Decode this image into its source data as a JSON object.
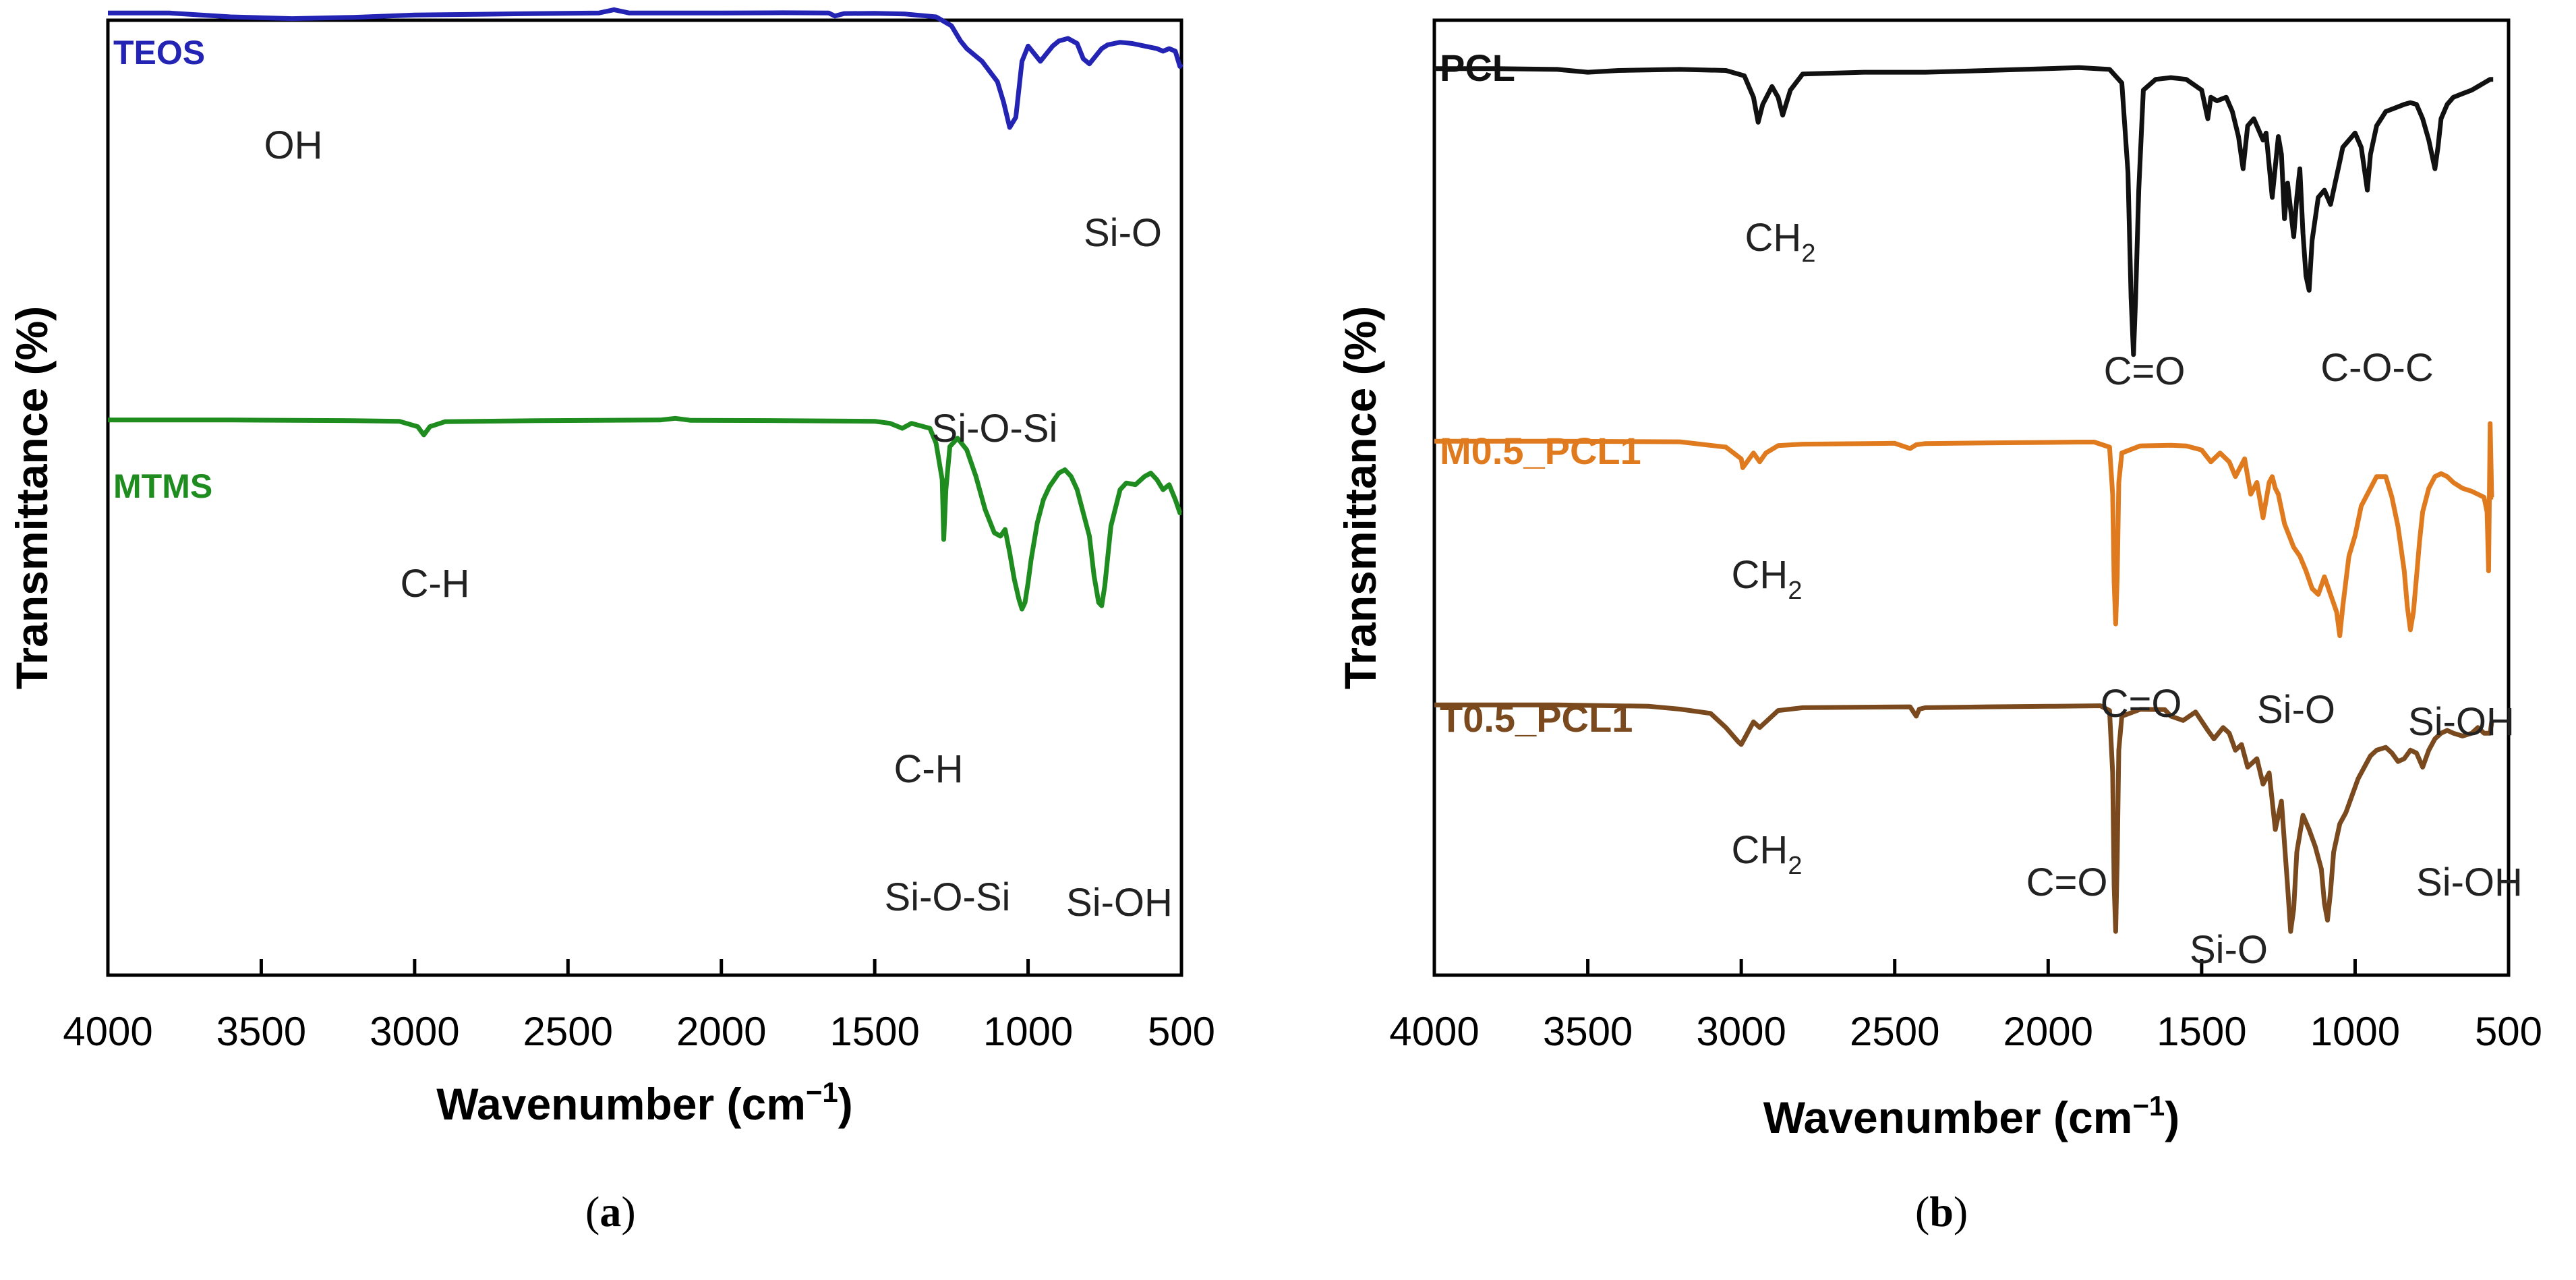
{
  "chart_data": [
    {
      "panel": "(a)",
      "type": "line",
      "xlabel": "Wavenumber (cm",
      "xlabel_sup": "−1",
      "ylabel": "Transmittance (%)",
      "xlim": [
        4000,
        500
      ],
      "x_reversed": true,
      "xticks": [
        "4000",
        "3500",
        "3000",
        "2500",
        "2000",
        "1500",
        "1000",
        "500"
      ],
      "xtick_values": [
        4000,
        3500,
        3000,
        2500,
        2000,
        1500,
        1000,
        500
      ],
      "y_units": "arbitrary (offset spectra)",
      "ylim": [
        0,
        100
      ],
      "grid": false,
      "series": [
        {
          "name": "TEOS",
          "color": "#2323b4",
          "x": [
            4000,
            3800,
            3600,
            3400,
            3200,
            3000,
            2800,
            2600,
            2400,
            2350,
            2300,
            2200,
            2000,
            1800,
            1650,
            1630,
            1600,
            1500,
            1400,
            1300,
            1250,
            1220,
            1200,
            1150,
            1100,
            1080,
            1060,
            1040,
            1020,
            1000,
            980,
            960,
            940,
            920,
            900,
            870,
            840,
            820,
            800,
            780,
            760,
            740,
            700,
            660,
            620,
            580,
            560,
            540,
            520,
            505,
            500
          ],
          "y": [
            97,
            97,
            95.5,
            94.8,
            95.3,
            96.2,
            96.5,
            96.8,
            97,
            98.3,
            97,
            97,
            97,
            97.1,
            97,
            95.8,
            96.8,
            96.9,
            96.6,
            95.5,
            92,
            86,
            83,
            78,
            70,
            62,
            52,
            56,
            78,
            84,
            81,
            78,
            81,
            84,
            86,
            87,
            85,
            79,
            77,
            80,
            83,
            84.5,
            85.5,
            85,
            84,
            83,
            82,
            83,
            82,
            76,
            77
          ]
        },
        {
          "name": "MTMS",
          "color": "#1e8c1e",
          "x": [
            4000,
            3600,
            3200,
            3050,
            2990,
            2970,
            2950,
            2900,
            2600,
            2200,
            2150,
            2100,
            1800,
            1500,
            1450,
            1410,
            1380,
            1320,
            1300,
            1280,
            1275,
            1268,
            1255,
            1230,
            1200,
            1170,
            1140,
            1110,
            1090,
            1075,
            1060,
            1045,
            1030,
            1020,
            1010,
            1000,
            990,
            970,
            950,
            930,
            900,
            880,
            860,
            840,
            800,
            785,
            770,
            760,
            750,
            730,
            700,
            680,
            650,
            620,
            600,
            580,
            560,
            540,
            520,
            505,
            500
          ],
          "y": [
            97,
            97,
            96.8,
            96.6,
            95,
            92.5,
            95,
            96.5,
            96.8,
            97,
            97.5,
            96.9,
            96.8,
            96.6,
            96,
            94.5,
            96,
            94.5,
            90,
            79,
            61,
            76,
            89,
            91.5,
            88,
            80,
            70,
            63,
            62,
            64,
            57,
            49,
            43,
            40,
            42,
            48,
            55,
            66,
            73,
            77,
            81,
            82,
            80,
            76,
            62,
            50,
            42,
            41,
            47,
            65,
            76,
            78,
            77.5,
            80,
            81,
            79,
            76,
            77.5,
            73,
            69,
            69
          ]
        }
      ],
      "annotations": [
        {
          "text": "OH",
          "color": "#222222"
        },
        {
          "text": "Si-O",
          "color": "#222222"
        },
        {
          "text": "Si-O-Si",
          "color": "#222222"
        },
        {
          "text": "C-H",
          "color": "#222222"
        },
        {
          "text": "C-H",
          "color": "#222222"
        },
        {
          "text": "Si-O-Si",
          "color": "#222222"
        },
        {
          "text": "Si-OH",
          "color": "#222222"
        }
      ]
    },
    {
      "panel": "(b)",
      "type": "line",
      "xlabel": "Wavenumber (cm",
      "xlabel_sup": "−1",
      "ylabel": "Transmittance (%)",
      "xlim": [
        4000,
        500
      ],
      "x_reversed": true,
      "xticks": [
        "4000",
        "3500",
        "3000",
        "2500",
        "2000",
        "1500",
        "1000",
        "500"
      ],
      "xtick_values": [
        4000,
        3500,
        3000,
        2500,
        2000,
        1500,
        1000,
        500
      ],
      "y_units": "arbitrary (offset spectra)",
      "ylim": [
        0,
        100
      ],
      "grid": false,
      "series": [
        {
          "name": "PCL",
          "color": "#111111",
          "x": [
            4000,
            3800,
            3600,
            3500,
            3400,
            3200,
            3050,
            2990,
            2960,
            2945,
            2930,
            2900,
            2880,
            2865,
            2840,
            2800,
            2600,
            2400,
            2200,
            2000,
            1900,
            1800,
            1760,
            1740,
            1730,
            1722,
            1715,
            1705,
            1690,
            1650,
            1600,
            1550,
            1500,
            1480,
            1470,
            1450,
            1420,
            1400,
            1380,
            1365,
            1350,
            1330,
            1300,
            1290,
            1270,
            1250,
            1240,
            1230,
            1220,
            1200,
            1190,
            1180,
            1170,
            1160,
            1150,
            1140,
            1120,
            1100,
            1080,
            1065,
            1050,
            1040,
            1020,
            1000,
            980,
            970,
            960,
            950,
            930,
            900,
            870,
            840,
            820,
            800,
            780,
            760,
            740,
            730,
            720,
            700,
            680,
            650,
            620,
            600,
            580,
            560,
            550
          ],
          "y": [
            94,
            94,
            93.8,
            93,
            93.5,
            93.8,
            93.5,
            92,
            86,
            79,
            84,
            89,
            86,
            81,
            88,
            92.5,
            93,
            93,
            93.5,
            94,
            94.3,
            93.8,
            90,
            65,
            30,
            14,
            30,
            60,
            88,
            91,
            91.5,
            91,
            88,
            80,
            86,
            85,
            86,
            82,
            75,
            66,
            78,
            80,
            74,
            76,
            58,
            75,
            70,
            52,
            62,
            47,
            58,
            66,
            48,
            36,
            32,
            46,
            58,
            60,
            56,
            62,
            68,
            72,
            74,
            76,
            72,
            66,
            60,
            70,
            78,
            82,
            83,
            84,
            84.5,
            84,
            80,
            74,
            66,
            72,
            80,
            84,
            86,
            87,
            88,
            89,
            90,
            91,
            91
          ]
        },
        {
          "name": "M0.5_PCL1",
          "color": "#e07a1f",
          "x": [
            4000,
            3600,
            3200,
            3050,
            3000,
            2995,
            2960,
            2940,
            2920,
            2880,
            2800,
            2500,
            2450,
            2430,
            2400,
            2200,
            2000,
            1900,
            1850,
            1800,
            1790,
            1785,
            1780,
            1775,
            1770,
            1760,
            1700,
            1600,
            1550,
            1500,
            1470,
            1440,
            1410,
            1390,
            1360,
            1340,
            1320,
            1300,
            1280,
            1270,
            1260,
            1250,
            1230,
            1200,
            1180,
            1160,
            1140,
            1120,
            1100,
            1080,
            1060,
            1050,
            1040,
            1020,
            1000,
            980,
            950,
            930,
            900,
            880,
            860,
            840,
            830,
            820,
            810,
            800,
            790,
            780,
            760,
            740,
            720,
            700,
            680,
            650,
            620,
            600,
            580,
            570,
            565,
            560,
            555,
            550
          ],
          "y": [
            94,
            94,
            93.8,
            92,
            88,
            85,
            90,
            87,
            90,
            92.5,
            93,
            93.3,
            91.5,
            92.8,
            93.2,
            93.4,
            93.6,
            93.7,
            93.7,
            92,
            76,
            46,
            32,
            48,
            80,
            90,
            92.4,
            92.6,
            92.4,
            91,
            87,
            90,
            87,
            82,
            88,
            76,
            80,
            68,
            80,
            82,
            78,
            76,
            66,
            58,
            55,
            50,
            44,
            42,
            48,
            42,
            36,
            28,
            38,
            55,
            62,
            72,
            78,
            82,
            82,
            75,
            65,
            50,
            38,
            30,
            36,
            48,
            60,
            70,
            78,
            82,
            83,
            82,
            80,
            78,
            77,
            76,
            75,
            70,
            50,
            100,
            75,
            75
          ]
        },
        {
          "name": "T0.5_PCL1",
          "color": "#7a4a1e",
          "x": [
            4000,
            3600,
            3300,
            3200,
            3100,
            3050,
            3010,
            3000,
            2990,
            2960,
            2940,
            2920,
            2880,
            2800,
            2600,
            2450,
            2430,
            2420,
            2400,
            2200,
            2000,
            1900,
            1830,
            1800,
            1790,
            1785,
            1780,
            1775,
            1770,
            1760,
            1700,
            1620,
            1600,
            1560,
            1520,
            1480,
            1460,
            1430,
            1410,
            1390,
            1370,
            1350,
            1320,
            1300,
            1280,
            1260,
            1240,
            1220,
            1210,
            1200,
            1190,
            1170,
            1150,
            1130,
            1110,
            1100,
            1090,
            1080,
            1070,
            1050,
            1030,
            1010,
            990,
            970,
            950,
            930,
            900,
            880,
            860,
            840,
            820,
            800,
            780,
            760,
            740,
            720,
            700,
            680,
            650,
            620,
            600,
            580,
            560,
            555,
            550
          ],
          "y": [
            94,
            94,
            93.5,
            92.5,
            91,
            86,
            81,
            80,
            82,
            88,
            86,
            88,
            92,
            93,
            93.2,
            93.3,
            90,
            92.5,
            93,
            93.3,
            93.5,
            93.6,
            93.7,
            92,
            70,
            30,
            14,
            40,
            78,
            90,
            92.4,
            92.3,
            90,
            88.5,
            91.5,
            85,
            82,
            86,
            84,
            78,
            80,
            72,
            75,
            66,
            70,
            50,
            60,
            30,
            14,
            22,
            42,
            55,
            50,
            44,
            36,
            24,
            18,
            28,
            42,
            52,
            56,
            62,
            68,
            72,
            76,
            78,
            79,
            77,
            74,
            75,
            78,
            77,
            72,
            78,
            82,
            84,
            85,
            84,
            83,
            84,
            86,
            84,
            84,
            88,
            88
          ]
        }
      ],
      "annotations": [
        {
          "text": "CH",
          "sub": "2",
          "color": "#222222"
        },
        {
          "text": "C=O",
          "color": "#222222"
        },
        {
          "text": "C-O-C",
          "color": "#222222"
        },
        {
          "text": "CH",
          "sub": "2",
          "color": "#222222"
        },
        {
          "text": "C=O",
          "color": "#222222"
        },
        {
          "text": "Si-O",
          "color": "#222222"
        },
        {
          "text": "Si-OH",
          "color": "#222222"
        },
        {
          "text": "CH",
          "sub": "2",
          "color": "#222222"
        },
        {
          "text": "C=O",
          "color": "#222222"
        },
        {
          "text": "Si-O",
          "color": "#222222"
        },
        {
          "text": "Si-OH",
          "color": "#222222"
        }
      ]
    }
  ],
  "panel_labels": {
    "a": {
      "open": "(",
      "letter": "a",
      "close": ")"
    },
    "b": {
      "open": "(",
      "letter": "b",
      "close": ")"
    }
  }
}
